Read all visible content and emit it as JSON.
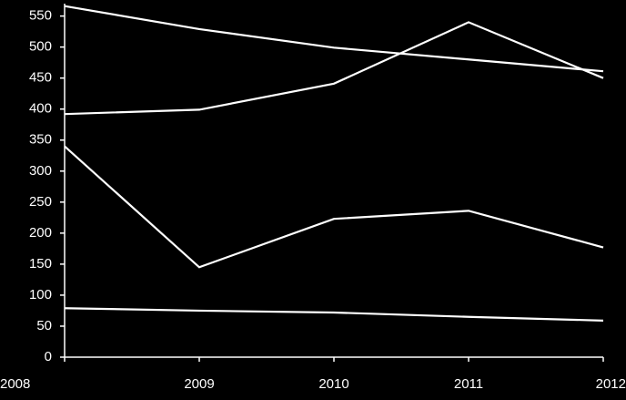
{
  "chart_data": {
    "type": "line",
    "x": [
      2008,
      2009,
      2010,
      2011,
      2012
    ],
    "xlim": [
      2008,
      2012
    ],
    "xticks": [
      2008,
      2009,
      2010,
      2011,
      2012
    ],
    "ylim": [
      0,
      570
    ],
    "yticks": [
      0,
      50,
      100,
      150,
      200,
      250,
      300,
      350,
      400,
      450,
      500,
      550
    ],
    "grid": false,
    "series": [
      {
        "color": "#ffffff",
        "values": [
          566,
          529,
          499,
          480,
          461
        ]
      },
      {
        "color": "#ffffff",
        "values": [
          392,
          399,
          441,
          540,
          450
        ]
      },
      {
        "color": "#ffffff",
        "values": [
          340,
          145,
          223,
          236,
          177
        ]
      },
      {
        "color": "#ffffff",
        "values": [
          79,
          75,
          72,
          65,
          59
        ]
      }
    ]
  }
}
